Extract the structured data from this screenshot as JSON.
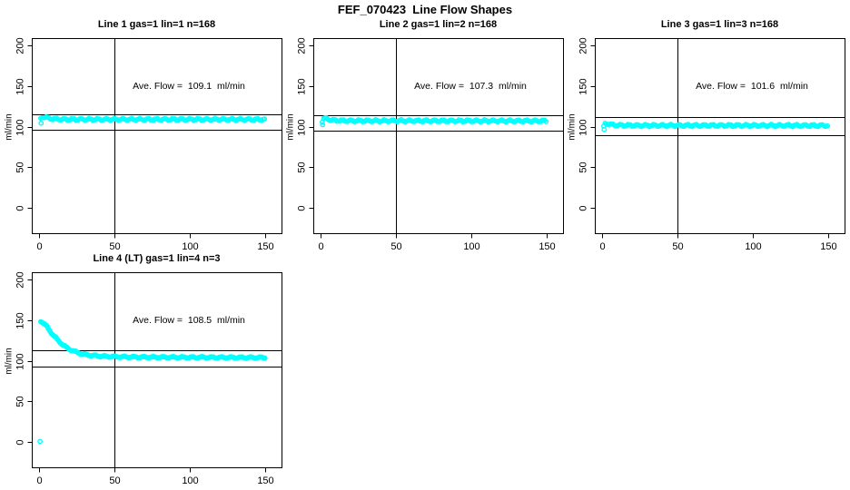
{
  "page": {
    "title": "FEF_070423  Line Flow Shapes"
  },
  "colors": {
    "points": "#00FFFF",
    "axis": "#000000",
    "background": "#FFFFFF"
  },
  "axes": {
    "ylabel": "ml/min",
    "x_ticks": [
      0,
      50,
      100,
      150
    ],
    "y_ticks": [
      0,
      50,
      100,
      150,
      200
    ],
    "xlim": [
      -4.6,
      161.2
    ],
    "ylim": [
      -32,
      208.9
    ]
  },
  "chart_data": [
    {
      "type": "scatter",
      "title": "Line 1 gas=1 lin=1 n=168",
      "annotation": "Ave. Flow =  109.1  ml/min",
      "ave_flow_ml_min": 109.1,
      "n": 168,
      "vline_x": 50,
      "hlines": [
        115.5,
        96.5
      ],
      "step": 0.89,
      "jitter": 1.15,
      "anchors": [
        [
          1,
          110
        ],
        [
          2,
          112
        ],
        [
          3,
          112.3
        ],
        [
          4,
          111.8
        ],
        [
          5,
          111.2
        ],
        [
          6,
          110.6
        ],
        [
          8,
          110
        ],
        [
          10,
          109.7
        ],
        [
          12,
          109.4
        ],
        [
          15,
          109.2
        ],
        [
          20,
          109.1
        ],
        [
          30,
          109.1
        ],
        [
          60,
          109.1
        ],
        [
          100,
          109.1
        ],
        [
          150,
          109
        ]
      ],
      "outliers": [
        [
          1.3,
          104.5
        ]
      ]
    },
    {
      "type": "scatter",
      "title": "Line 2 gas=1 lin=2 n=168",
      "annotation": "Ave. Flow =  107.3  ml/min",
      "ave_flow_ml_min": 107.3,
      "n": 168,
      "vline_x": 50,
      "hlines": [
        114,
        95
      ],
      "step": 0.89,
      "jitter": 1.15,
      "anchors": [
        [
          1,
          107
        ],
        [
          2,
          110.2
        ],
        [
          3,
          110.4
        ],
        [
          4,
          110
        ],
        [
          5,
          109.4
        ],
        [
          6,
          108.8
        ],
        [
          8,
          108.2
        ],
        [
          10,
          107.9
        ],
        [
          12,
          107.7
        ],
        [
          15,
          107.5
        ],
        [
          20,
          107.4
        ],
        [
          30,
          107.4
        ],
        [
          60,
          107.4
        ],
        [
          100,
          107.3
        ],
        [
          150,
          107.2
        ]
      ],
      "outliers": [
        [
          1.3,
          102.5
        ]
      ]
    },
    {
      "type": "scatter",
      "title": "Line 3 gas=1 lin=3 n=168",
      "annotation": "Ave. Flow =  101.6  ml/min",
      "ave_flow_ml_min": 101.6,
      "n": 168,
      "vline_x": 50,
      "hlines": [
        111.5,
        90
      ],
      "step": 0.89,
      "jitter": 1.15,
      "anchors": [
        [
          1,
          100
        ],
        [
          2,
          103.8
        ],
        [
          3,
          104
        ],
        [
          4,
          103.6
        ],
        [
          5,
          103
        ],
        [
          6,
          102.6
        ],
        [
          8,
          102.1
        ],
        [
          10,
          101.9
        ],
        [
          12,
          101.8
        ],
        [
          15,
          101.7
        ],
        [
          20,
          101.6
        ],
        [
          30,
          101.6
        ],
        [
          60,
          101.6
        ],
        [
          100,
          101.6
        ],
        [
          150,
          101.5
        ]
      ],
      "outliers": [
        [
          1.3,
          96.5
        ]
      ]
    },
    {
      "type": "scatter",
      "title": "Line 4 (LT) gas=1 lin=4 n=3",
      "annotation": "Ave. Flow =  108.5  ml/min",
      "ave_flow_ml_min": 108.5,
      "n": 3,
      "vline_x": 50,
      "hlines": [
        113,
        93
      ],
      "step": 0.45,
      "jitter": 0.85,
      "anchors": [
        [
          1,
          149
        ],
        [
          2,
          148
        ],
        [
          3,
          146.5
        ],
        [
          4,
          144.5
        ],
        [
          5,
          142.5
        ],
        [
          6,
          140
        ],
        [
          7,
          137.5
        ],
        [
          8,
          135
        ],
        [
          9,
          132.5
        ],
        [
          10,
          130.5
        ],
        [
          11,
          128.5
        ],
        [
          12,
          126.5
        ],
        [
          13,
          124.5
        ],
        [
          14,
          123
        ],
        [
          15,
          121
        ],
        [
          16,
          119.5
        ],
        [
          17,
          118
        ],
        [
          18,
          116.5
        ],
        [
          19,
          115.5
        ],
        [
          20,
          114.5
        ],
        [
          22,
          112.8
        ],
        [
          24,
          111.2
        ],
        [
          26,
          110
        ],
        [
          28,
          108.9
        ],
        [
          30,
          108
        ],
        [
          33,
          107.2
        ],
        [
          36,
          106.5
        ],
        [
          40,
          106
        ],
        [
          45,
          105.5
        ],
        [
          50,
          105.2
        ],
        [
          55,
          105
        ],
        [
          60,
          104.8
        ],
        [
          70,
          104.6
        ],
        [
          80,
          104.5
        ],
        [
          90,
          104.4
        ],
        [
          100,
          104.3
        ],
        [
          110,
          104.3
        ],
        [
          120,
          104.2
        ],
        [
          130,
          104.1
        ],
        [
          140,
          104.1
        ],
        [
          150,
          104
        ]
      ],
      "outliers": [
        [
          0.6,
          0.5
        ]
      ]
    }
  ]
}
